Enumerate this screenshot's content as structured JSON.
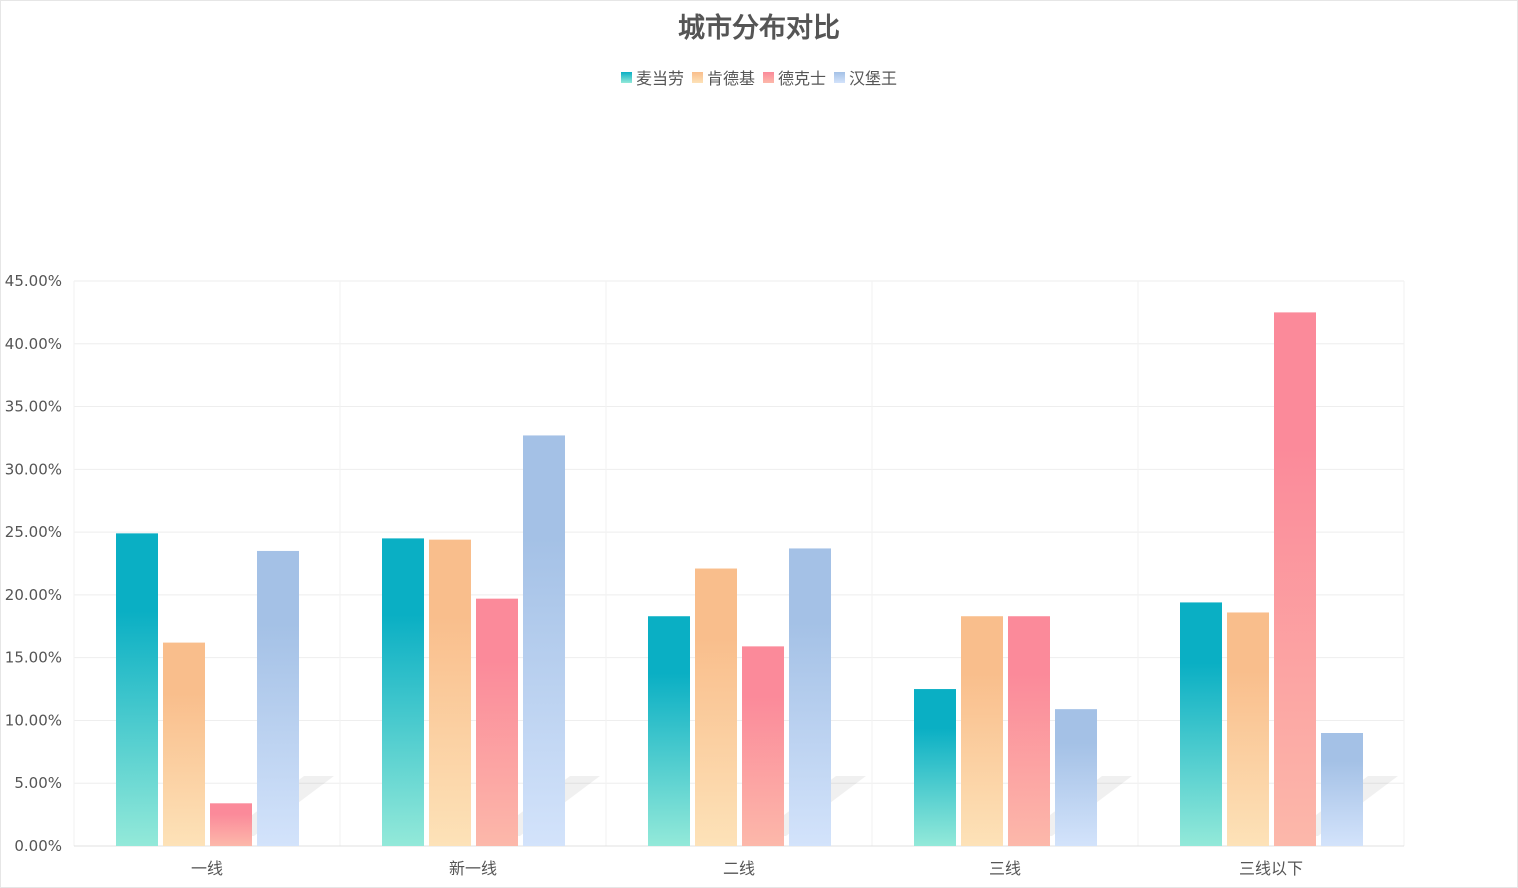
{
  "chart_data": {
    "type": "bar",
    "title": "城市分布对比",
    "categories": [
      "一线",
      "新一线",
      "二线",
      "三线",
      "三线以下"
    ],
    "series": [
      {
        "name": "麦当劳",
        "values": [
          24.9,
          24.5,
          18.3,
          12.5,
          19.4
        ],
        "color": "#0aafc4",
        "color_bottom": "#93e9d9"
      },
      {
        "name": "肯德基",
        "values": [
          16.2,
          24.4,
          22.1,
          18.3,
          18.6
        ],
        "color": "#f9be8c",
        "color_bottom": "#fde2b8"
      },
      {
        "name": "德克士",
        "values": [
          3.4,
          19.7,
          15.9,
          18.3,
          42.5
        ],
        "color": "#fb8a9a",
        "color_bottom": "#fcb8aa"
      },
      {
        "name": "汉堡王",
        "values": [
          23.5,
          32.7,
          23.7,
          10.9,
          9.0
        ],
        "color": "#a4c1e6",
        "color_bottom": "#d3e3fb"
      }
    ],
    "xlabel": "",
    "ylabel": "",
    "ylim": [
      0,
      45
    ],
    "yticks": [
      "0.00%",
      "5.00%",
      "10.00%",
      "15.00%",
      "20.00%",
      "25.00%",
      "30.00%",
      "35.00%",
      "40.00%",
      "45.00%"
    ],
    "grid": true,
    "legend": "top-center"
  }
}
